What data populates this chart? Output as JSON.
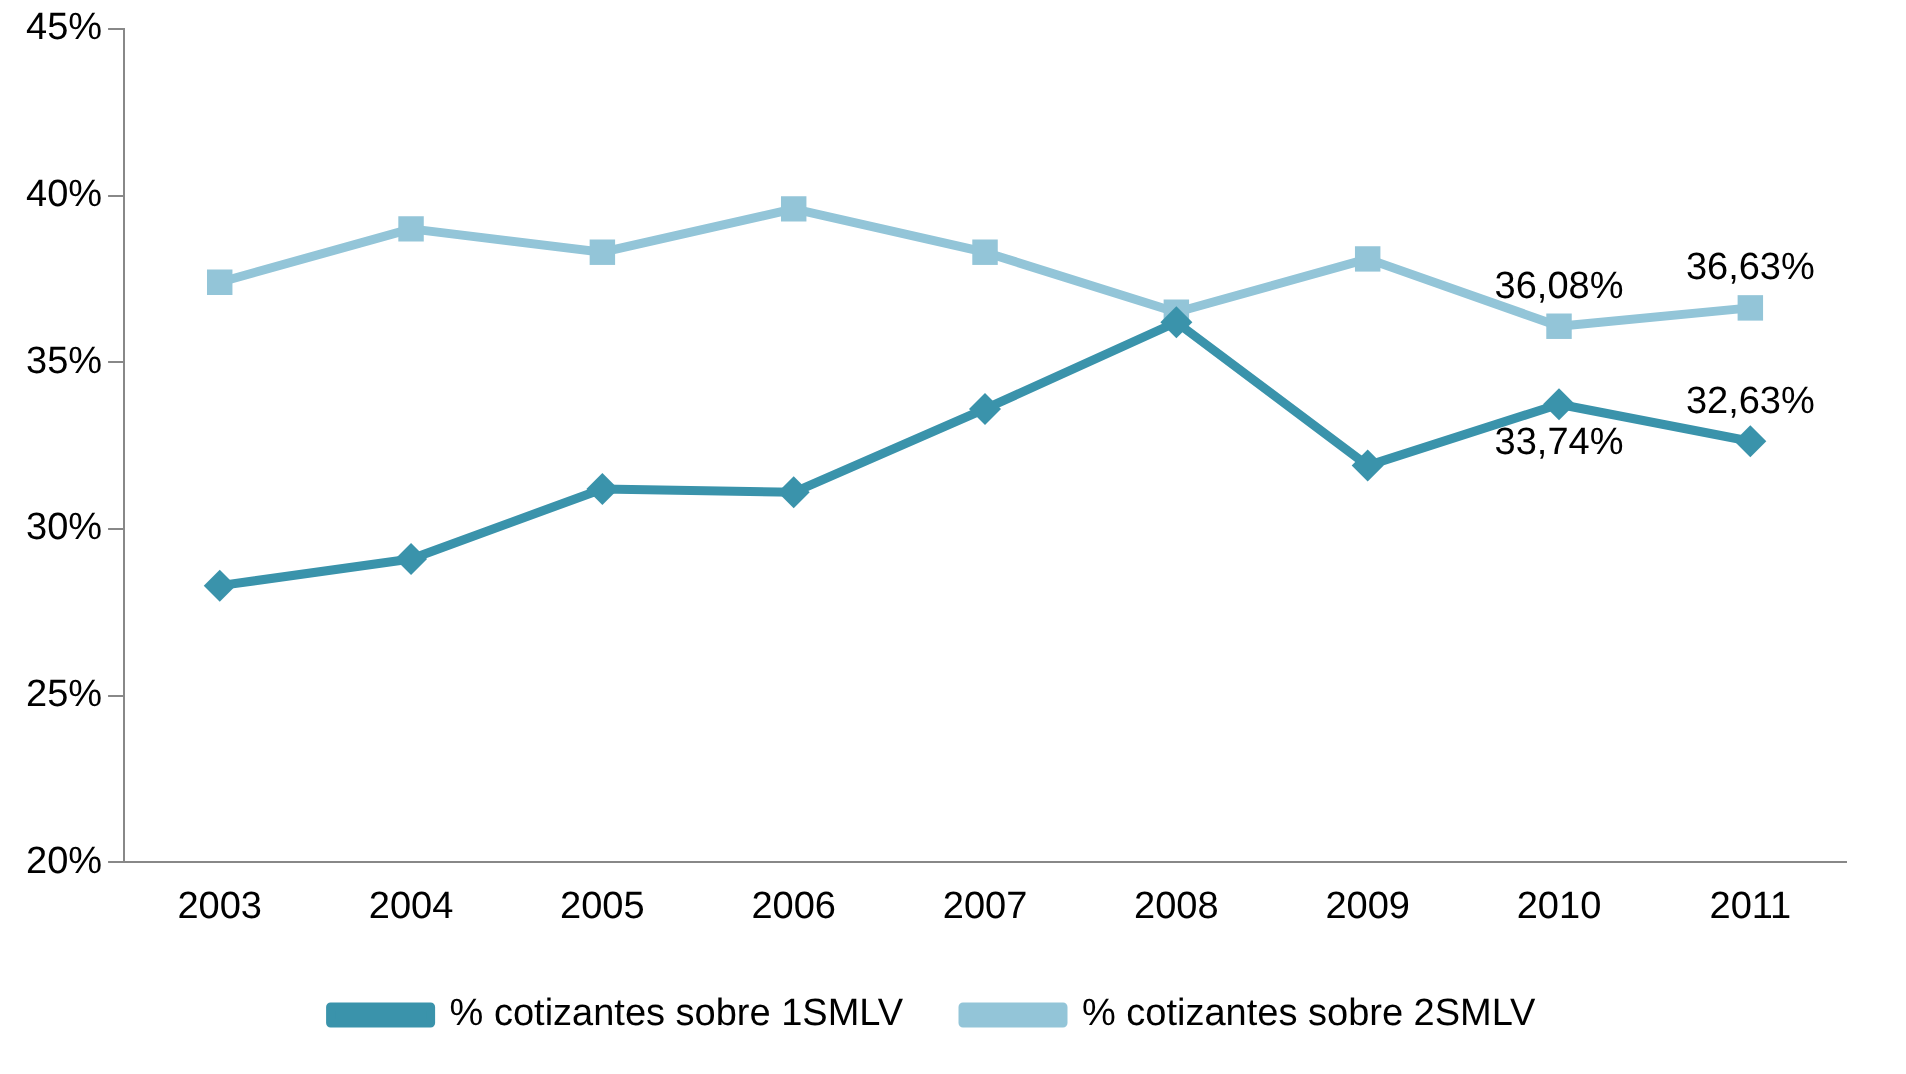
{
  "chart_data": {
    "type": "line",
    "categories": [
      "2003",
      "2004",
      "2005",
      "2006",
      "2007",
      "2008",
      "2009",
      "2010",
      "2011"
    ],
    "series": [
      {
        "name": "% cotizantes sobre 1SMLV",
        "color": "#3a93ab",
        "marker": "diamond",
        "values": [
          28.3,
          29.1,
          31.2,
          31.1,
          33.6,
          36.2,
          31.9,
          33.74,
          32.63
        ],
        "value_labels": [
          null,
          null,
          null,
          null,
          null,
          null,
          null,
          "33,74%",
          "32,63%"
        ]
      },
      {
        "name": "% cotizantes sobre 2SMLV",
        "color": "#93c5d8",
        "marker": "square",
        "values": [
          37.4,
          39.0,
          38.3,
          39.6,
          38.3,
          36.5,
          38.1,
          36.08,
          36.63
        ],
        "value_labels": [
          null,
          null,
          null,
          null,
          null,
          null,
          null,
          "36,08%",
          "36,63%"
        ]
      }
    ],
    "ylim": [
      20,
      45
    ],
    "yticks": [
      {
        "value": 20,
        "label": "20%"
      },
      {
        "value": 25,
        "label": "25%"
      },
      {
        "value": 30,
        "label": "30%"
      },
      {
        "value": 35,
        "label": "35%"
      },
      {
        "value": 40,
        "label": "40%"
      },
      {
        "value": 45,
        "label": "45%"
      }
    ],
    "grid": false,
    "legend": "bottom",
    "line_style": "solid"
  }
}
